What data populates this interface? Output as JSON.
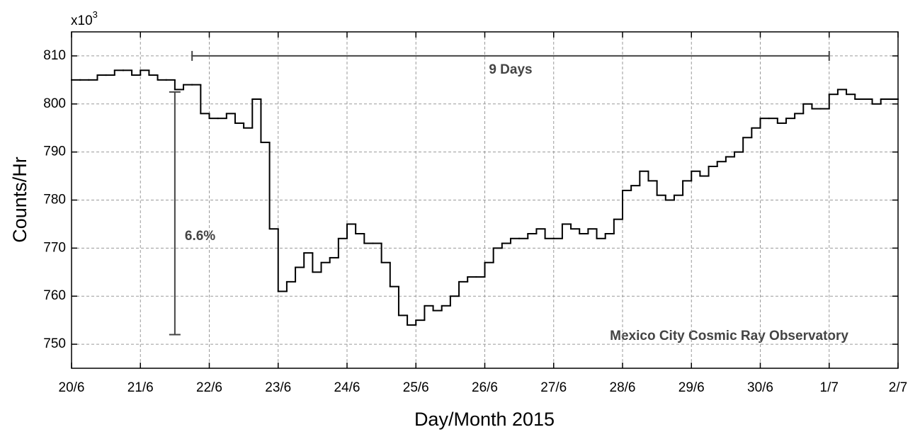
{
  "chart_data": {
    "type": "step",
    "y_axis_label": "Counts/Hr",
    "x_axis_label": "Day/Month 2015",
    "y_multiplier": "x10",
    "y_multiplier_exp": "3",
    "color": "#000000",
    "grid": true,
    "xlim": [
      0,
      12
    ],
    "xticks": [
      {
        "value": 0,
        "label": "20/6"
      },
      {
        "value": 1,
        "label": "21/6"
      },
      {
        "value": 2,
        "label": "22/6"
      },
      {
        "value": 3,
        "label": "23/6"
      },
      {
        "value": 4,
        "label": "24/6"
      },
      {
        "value": 5,
        "label": "25/6"
      },
      {
        "value": 6,
        "label": "26/6"
      },
      {
        "value": 7,
        "label": "27/6"
      },
      {
        "value": 8,
        "label": "28/6"
      },
      {
        "value": 9,
        "label": "29/6"
      },
      {
        "value": 10,
        "label": "30/6"
      },
      {
        "value": 11,
        "label": "1/7"
      },
      {
        "value": 12,
        "label": "2/7"
      }
    ],
    "ylim": [
      745,
      815
    ],
    "yticks": [
      750,
      760,
      770,
      780,
      790,
      800,
      810
    ],
    "x": [
      0,
      0.125,
      0.25,
      0.375,
      0.5,
      0.625,
      0.75,
      0.875,
      1,
      1.125,
      1.25,
      1.375,
      1.5,
      1.625,
      1.75,
      1.875,
      2,
      2.125,
      2.25,
      2.375,
      2.5,
      2.625,
      2.75,
      2.875,
      3,
      3.125,
      3.25,
      3.375,
      3.5,
      3.625,
      3.75,
      3.875,
      4,
      4.125,
      4.25,
      4.375,
      4.5,
      4.625,
      4.75,
      4.875,
      5,
      5.125,
      5.25,
      5.375,
      5.5,
      5.625,
      5.75,
      5.875,
      6,
      6.125,
      6.25,
      6.375,
      6.5,
      6.625,
      6.75,
      6.875,
      7,
      7.125,
      7.25,
      7.375,
      7.5,
      7.625,
      7.75,
      7.875,
      8,
      8.125,
      8.25,
      8.375,
      8.5,
      8.625,
      8.75,
      8.875,
      9,
      9.125,
      9.25,
      9.375,
      9.5,
      9.625,
      9.75,
      9.875,
      10,
      10.125,
      10.25,
      10.375,
      10.5,
      10.625,
      10.75,
      10.875,
      11,
      11.125,
      11.25,
      11.375,
      11.5,
      11.625,
      11.75,
      11.875
    ],
    "values": [
      805,
      805,
      805,
      806,
      806,
      807,
      807,
      806,
      807,
      806,
      805,
      805,
      803,
      804,
      804,
      798,
      797,
      797,
      798,
      796,
      795,
      801,
      792,
      774,
      761,
      763,
      766,
      769,
      765,
      767,
      768,
      772,
      775,
      773,
      771,
      771,
      767,
      762,
      756,
      754,
      755,
      758,
      757,
      758,
      760,
      763,
      764,
      764,
      767,
      770,
      771,
      772,
      772,
      773,
      774,
      772,
      772,
      775,
      774,
      773,
      774,
      772,
      773,
      776,
      782,
      783,
      786,
      784,
      781,
      780,
      781,
      784,
      786,
      785,
      787,
      788,
      789,
      790,
      793,
      795,
      797,
      797,
      796,
      797,
      798,
      800,
      799,
      799,
      802,
      803,
      802,
      801,
      801,
      800,
      801,
      801
    ],
    "annotations": [
      {
        "text": "9 Days",
        "x": [
          1.75,
          11
        ],
        "y": 810
      },
      {
        "text": "6.6%",
        "x": 1.5,
        "y": [
          752,
          802.5
        ]
      },
      {
        "text": "Mexico City Cosmic Ray Observatory"
      }
    ]
  }
}
